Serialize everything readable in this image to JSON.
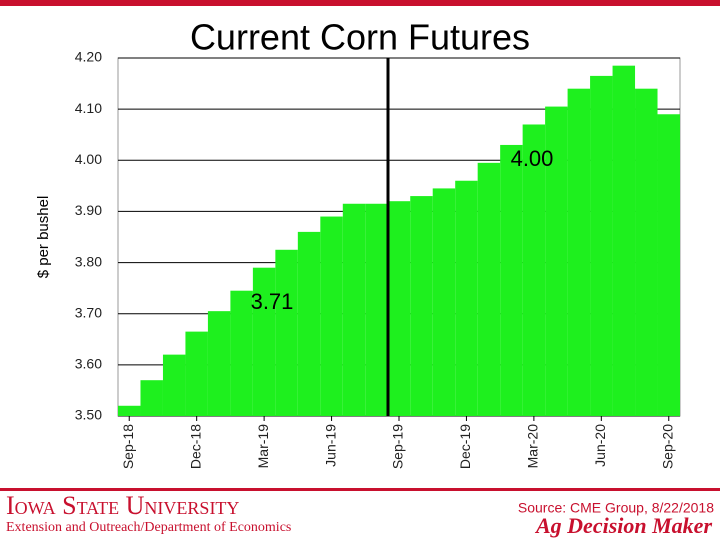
{
  "chart_data": {
    "type": "bar",
    "title": "Current Corn Futures",
    "y_label": "$ per bushel",
    "categories": [
      "Sep-18",
      null,
      null,
      "Dec-18",
      null,
      null,
      "Mar-19",
      null,
      null,
      "Jun-19",
      null,
      null,
      "Sep-19",
      null,
      null,
      "Dec-19",
      null,
      null,
      "Mar-20",
      null,
      null,
      "Jun-20",
      null,
      null,
      "Sep-20"
    ],
    "values": [
      3.52,
      3.57,
      3.62,
      3.665,
      3.705,
      3.745,
      3.79,
      3.825,
      3.86,
      3.89,
      3.915,
      3.915,
      3.92,
      3.93,
      3.945,
      3.96,
      3.995,
      4.03,
      4.07,
      4.105,
      4.14,
      4.165,
      4.185,
      4.14,
      4.09
    ],
    "color": "#1ef01e",
    "ylim": [
      3.5,
      4.2
    ],
    "yticks": [
      {
        "value": 3.5,
        "label": "3.50"
      },
      {
        "value": 3.6,
        "label": "3.60"
      },
      {
        "value": 3.7,
        "label": "3.70"
      },
      {
        "value": 3.8,
        "label": "3.80"
      },
      {
        "value": 3.9,
        "label": "3.90"
      },
      {
        "value": 4.0,
        "label": "4.00"
      },
      {
        "value": 4.1,
        "label": "4.10"
      },
      {
        "value": 4.2,
        "label": "4.20"
      }
    ],
    "grid": true,
    "annotations": [
      "3.71",
      "4.00"
    ]
  },
  "footer": {
    "university": "Iowa State University",
    "department": "Extension and Outreach/Department of Economics",
    "source": "Source: CME Group, 8/22/2018",
    "brand": "Ag Decision Maker"
  }
}
